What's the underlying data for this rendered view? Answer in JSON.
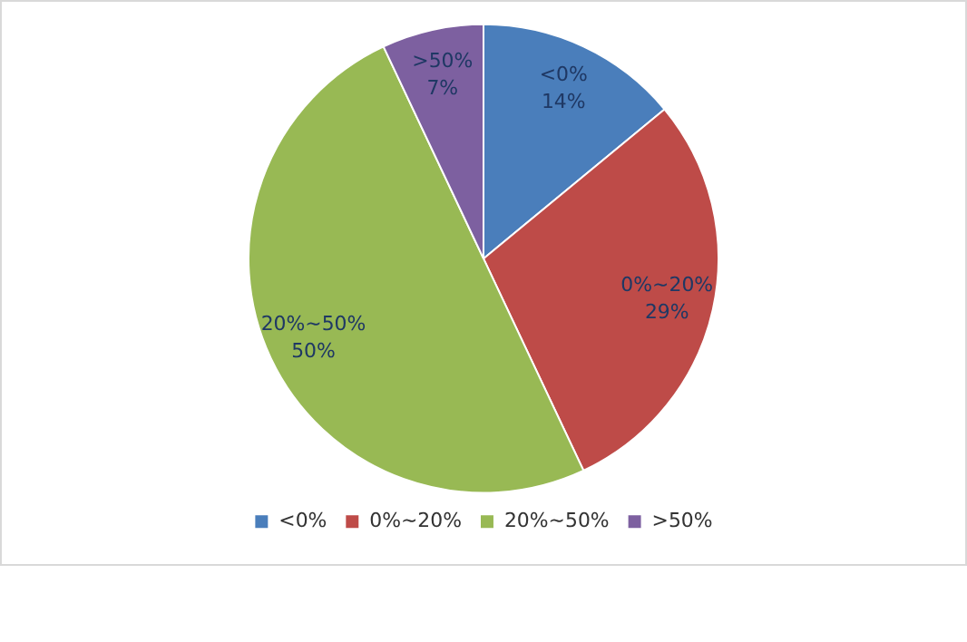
{
  "chart_data": {
    "type": "pie",
    "categories": [
      "<0%",
      "0%~20%",
      "20%~50%",
      ">50%"
    ],
    "values": [
      14,
      29,
      50,
      7
    ],
    "colors": [
      "#4a7ebb",
      "#be4b48",
      "#98b954",
      "#7d60a0"
    ],
    "value_labels": [
      "14%",
      "29%",
      "50%",
      "7%"
    ],
    "legend": "bottom"
  }
}
